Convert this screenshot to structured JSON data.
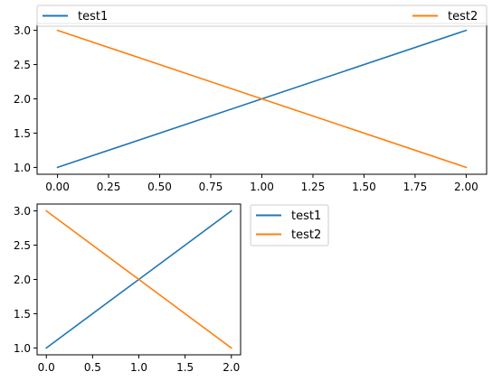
{
  "chart_data": [
    {
      "type": "line",
      "title": "",
      "xlabel": "",
      "ylabel": "",
      "xlim": [
        -0.1,
        2.1
      ],
      "ylim": [
        0.9,
        3.1
      ],
      "xticks": [
        "0.00",
        "0.25",
        "0.50",
        "0.75",
        "1.00",
        "1.25",
        "1.50",
        "1.75",
        "2.00"
      ],
      "yticks": [
        "1.0",
        "1.5",
        "2.0",
        "2.5",
        "3.0"
      ],
      "legend_position": "top, spanning full width above axes",
      "grid": false,
      "series": [
        {
          "name": "test1",
          "x": [
            0,
            1,
            2
          ],
          "y": [
            1,
            2,
            3
          ],
          "color": "#1f77b4"
        },
        {
          "name": "test2",
          "x": [
            0,
            1,
            2
          ],
          "y": [
            3,
            2,
            1
          ],
          "color": "#ff7f0e"
        }
      ]
    },
    {
      "type": "line",
      "title": "",
      "xlabel": "",
      "ylabel": "",
      "xlim": [
        -0.1,
        2.1
      ],
      "ylim": [
        0.9,
        3.1
      ],
      "xticks": [
        "0.0",
        "0.5",
        "1.0",
        "1.5",
        "2.0"
      ],
      "yticks": [
        "1.0",
        "1.5",
        "2.0",
        "2.5",
        "3.0"
      ],
      "legend_position": "outside right, upper",
      "grid": false,
      "series": [
        {
          "name": "test1",
          "x": [
            0,
            1,
            2
          ],
          "y": [
            1,
            2,
            3
          ],
          "color": "#1f77b4"
        },
        {
          "name": "test2",
          "x": [
            0,
            1,
            2
          ],
          "y": [
            3,
            2,
            1
          ],
          "color": "#ff7f0e"
        }
      ]
    }
  ]
}
